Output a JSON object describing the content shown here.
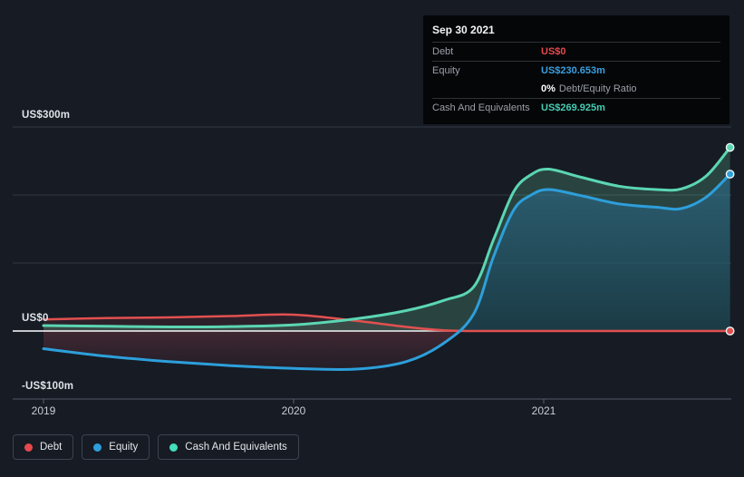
{
  "tooltip": {
    "date": "Sep 30 2021",
    "debt_label": "Debt",
    "debt_value": "US$0",
    "equity_label": "Equity",
    "equity_value": "US$230.653m",
    "ratio_value": "0%",
    "ratio_label": "Debt/Equity Ratio",
    "cash_label": "Cash And Equivalents",
    "cash_value": "US$269.925m"
  },
  "axes": {
    "y_labels": [
      "US$300m",
      "US$0",
      "-US$100m"
    ],
    "x_labels": [
      "2019",
      "2020",
      "2021"
    ]
  },
  "legend": {
    "items": [
      {
        "label": "Debt",
        "color": "#e5494e"
      },
      {
        "label": "Equity",
        "color": "#2d9fdb"
      },
      {
        "label": "Cash And Equivalents",
        "color": "#45ddba"
      }
    ]
  },
  "colors": {
    "debt_line": "#e2504f",
    "equity_line": "#2d9fdb",
    "cash_line": "#5bd6b3",
    "debt_value_text": "#e5484d",
    "equity_value_text": "#3b9fe0",
    "cash_value_text": "#45cdb4",
    "background": "#161b24",
    "gridline": "#333a44",
    "axis_line": "#454d5a",
    "zero_line": "#e8ebee"
  },
  "chart_data": {
    "type": "area",
    "title": "Debt to Equity History",
    "x_years": [
      2019.0,
      2019.25,
      2019.5,
      2019.75,
      2020.0,
      2020.25,
      2020.45,
      2020.6,
      2020.72,
      2020.8,
      2020.88,
      2020.95,
      2021.02,
      2021.15,
      2021.3,
      2021.45,
      2021.55,
      2021.65,
      2021.745
    ],
    "series": [
      {
        "name": "Debt",
        "color": "#e2504f",
        "values_musd": [
          17,
          19,
          20,
          22,
          24,
          15,
          6,
          1,
          0,
          0,
          0,
          0,
          0,
          0,
          0,
          0,
          0,
          0,
          0
        ]
      },
      {
        "name": "Equity",
        "color": "#2d9fdb",
        "values_musd": [
          -26,
          -37,
          -45,
          -51,
          -55,
          -56,
          -45,
          -18,
          25,
          110,
          178,
          200,
          208,
          199,
          187,
          182,
          180,
          197,
          230.653
        ]
      },
      {
        "name": "Cash And Equivalents",
        "color": "#5bd6b3",
        "values_musd": [
          8,
          7,
          6,
          6.5,
          9,
          18,
          30,
          45,
          65,
          135,
          205,
          230,
          238,
          226,
          213,
          208,
          209,
          228,
          269.925
        ]
      }
    ],
    "ylim_musd": [
      -100,
      300
    ],
    "y_gridlines_musd": [
      300,
      200,
      100
    ],
    "y_zero_line": 0,
    "x_ticks": [
      2019,
      2020,
      2021
    ],
    "grid": true,
    "legend_position": "bottom-left",
    "last_point": {
      "date": "Sep 30 2021",
      "debt_musd": 0,
      "equity_musd": 230.653,
      "cash_musd": 269.925,
      "debt_equity_ratio_pct": 0
    }
  }
}
